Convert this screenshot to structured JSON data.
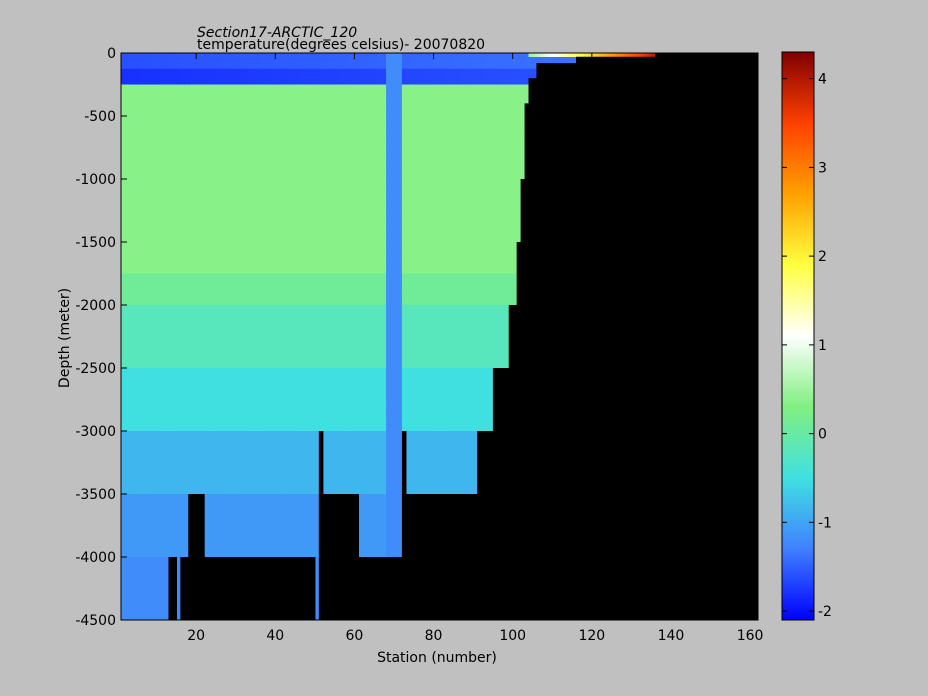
{
  "chart_data": {
    "type": "heatmap",
    "title": "Section17-ARCTIC_120",
    "subtitle": "temperature(degrees  celsius)- 20070820",
    "xlabel": "Station (number)",
    "ylabel": "Depth (meter)",
    "xlim": [
      1,
      162
    ],
    "ylim": [
      -4500,
      0
    ],
    "x_ticks": [
      20,
      40,
      60,
      80,
      100,
      120,
      140,
      160
    ],
    "y_ticks": [
      0,
      -500,
      -1000,
      -1500,
      -2000,
      -2500,
      -3000,
      -3500,
      -4000,
      -4500
    ],
    "colorbar": {
      "min": -2.1,
      "max": 4.3,
      "ticks": [
        -2,
        -1,
        0,
        1,
        2,
        3,
        4
      ],
      "colormap": "jet-white-center",
      "stops": [
        "#0000ff",
        "#4080ff",
        "#40e0e0",
        "#80f080",
        "#ffffff",
        "#ffff40",
        "#ffa000",
        "#ff4000",
        "#800000"
      ]
    },
    "land_color": "#000000",
    "temperature_layers_degC": [
      {
        "depth_range": [
          0,
          -150
        ],
        "value_west": -1.6,
        "value_east": -1.3
      },
      {
        "depth_range": [
          -150,
          -250
        ],
        "value_west": -1.8,
        "value_east": -1.5
      },
      {
        "depth_range": [
          -250,
          -1750
        ],
        "value": 0.35
      },
      {
        "depth_range": [
          -1750,
          -2000
        ],
        "value": 0.1
      },
      {
        "depth_range": [
          -2000,
          -2500
        ],
        "value": -0.2
      },
      {
        "depth_range": [
          -2500,
          -3000
        ],
        "value": -0.5
      },
      {
        "depth_range": [
          -3000,
          -3500
        ],
        "value": -0.85
      },
      {
        "depth_range": [
          -3500,
          -4000
        ],
        "value": -1.1
      },
      {
        "depth_range": [
          -4000,
          -4500
        ],
        "value": -1.2
      }
    ],
    "anomalous_station_column": {
      "station_range": [
        68,
        72
      ],
      "value": -1.2
    },
    "surface_warm_patch": {
      "station_range": [
        104,
        136
      ],
      "depth": 0,
      "max_value": 4.0
    },
    "bottom_depth_profile": [
      {
        "station": 1,
        "depth": -4500
      },
      {
        "station": 12,
        "depth": -4500
      },
      {
        "station": 13,
        "depth": -4000
      },
      {
        "station": 15,
        "depth": -4500
      },
      {
        "station": 16,
        "depth": -4000
      },
      {
        "station": 18,
        "depth": -3500
      },
      {
        "station": 22,
        "depth": -4000
      },
      {
        "station": 50,
        "depth": -4500
      },
      {
        "station": 51,
        "depth": -3000
      },
      {
        "station": 52,
        "depth": -3500
      },
      {
        "station": 61,
        "depth": -4000
      },
      {
        "station": 72,
        "depth": -3000
      },
      {
        "station": 73,
        "depth": -3500
      },
      {
        "station": 80,
        "depth": -3500
      },
      {
        "station": 90,
        "depth": -3500
      },
      {
        "station": 91,
        "depth": -3000
      },
      {
        "station": 94,
        "depth": -3000
      },
      {
        "station": 95,
        "depth": -2500
      },
      {
        "station": 98,
        "depth": -2500
      },
      {
        "station": 99,
        "depth": -2000
      },
      {
        "station": 101,
        "depth": -1500
      },
      {
        "station": 102,
        "depth": -1000
      },
      {
        "station": 103,
        "depth": -400
      },
      {
        "station": 104,
        "depth": -200
      },
      {
        "station": 106,
        "depth": -80
      },
      {
        "station": 116,
        "depth": -30
      },
      {
        "station": 136,
        "depth": 0
      }
    ]
  }
}
